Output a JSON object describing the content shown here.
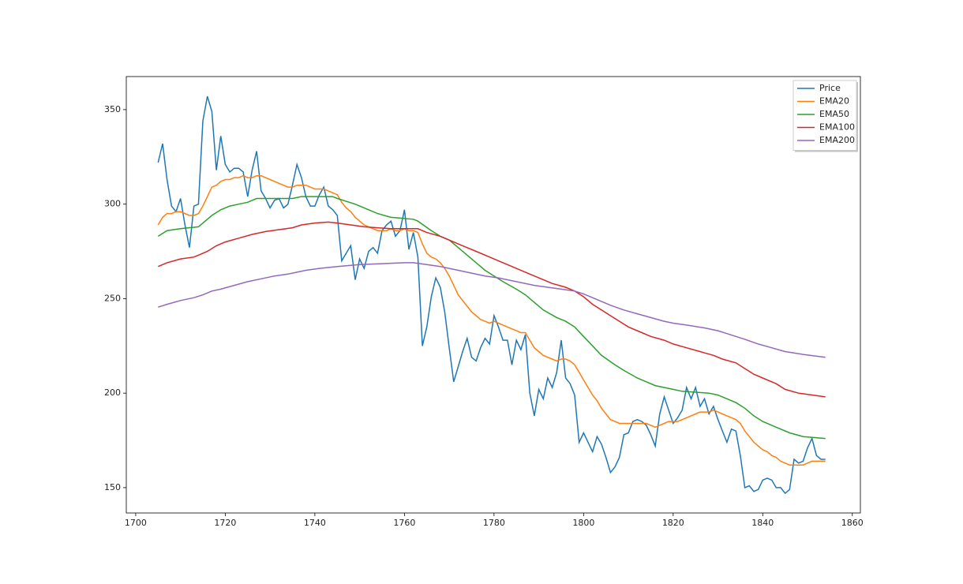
{
  "chart_data": {
    "type": "line",
    "legend": "upper right",
    "xlim": [
      1697.9,
      1861.8
    ],
    "ylim": [
      136.6,
      367.5
    ],
    "xticks": [
      1700,
      1720,
      1740,
      1760,
      1780,
      1800,
      1820,
      1840,
      1860
    ],
    "yticks": [
      150,
      200,
      250,
      300,
      350
    ],
    "x": [
      1705,
      1706,
      1707,
      1708,
      1709,
      1710,
      1711,
      1712,
      1713,
      1714,
      1715,
      1716,
      1717,
      1718,
      1719,
      1720,
      1721,
      1722,
      1723,
      1724,
      1725,
      1726,
      1727,
      1728,
      1729,
      1730,
      1731,
      1732,
      1733,
      1734,
      1735,
      1736,
      1737,
      1738,
      1739,
      1740,
      1741,
      1742,
      1743,
      1744,
      1745,
      1746,
      1747,
      1748,
      1749,
      1750,
      1751,
      1752,
      1753,
      1754,
      1755,
      1756,
      1757,
      1758,
      1759,
      1760,
      1761,
      1762,
      1763,
      1764,
      1765,
      1766,
      1767,
      1768,
      1769,
      1770,
      1771,
      1772,
      1773,
      1774,
      1775,
      1776,
      1777,
      1778,
      1779,
      1780,
      1781,
      1782,
      1783,
      1784,
      1785,
      1786,
      1787,
      1788,
      1789,
      1790,
      1791,
      1792,
      1793,
      1794,
      1795,
      1796,
      1797,
      1798,
      1799,
      1800,
      1801,
      1802,
      1803,
      1804,
      1805,
      1806,
      1807,
      1808,
      1809,
      1810,
      1811,
      1812,
      1813,
      1814,
      1815,
      1816,
      1817,
      1818,
      1819,
      1820,
      1821,
      1822,
      1823,
      1824,
      1825,
      1826,
      1827,
      1828,
      1829,
      1830,
      1831,
      1832,
      1833,
      1834,
      1835,
      1836,
      1837,
      1838,
      1839,
      1840,
      1841,
      1842,
      1843,
      1844,
      1845,
      1846,
      1847,
      1848,
      1849,
      1850,
      1851,
      1852,
      1853,
      1854
    ],
    "series": [
      {
        "name": "Price",
        "color": "#1f77b4",
        "values": [
          322,
          332,
          313,
          299,
          296,
          303,
          289,
          277,
          299,
          300,
          344,
          357,
          349,
          318,
          336,
          321,
          317,
          319,
          319,
          317,
          304,
          318,
          328,
          307,
          303,
          298,
          302,
          303,
          298,
          300,
          310,
          321,
          314,
          304,
          299,
          299,
          305,
          309,
          299,
          297,
          294,
          270,
          274,
          278,
          260,
          271,
          266,
          275,
          277,
          274,
          286,
          289,
          291,
          283,
          286,
          297,
          276,
          285,
          272,
          225,
          235,
          251,
          261,
          256,
          243,
          224,
          206,
          214,
          222,
          229,
          219,
          217,
          224,
          229,
          226,
          241,
          235,
          228,
          228,
          215,
          228,
          223,
          231,
          200,
          188,
          202,
          197,
          208,
          203,
          211,
          228,
          208,
          205,
          199,
          174,
          179,
          174,
          169,
          177,
          173,
          166,
          158,
          161,
          166,
          178,
          179,
          185,
          186,
          185,
          183,
          178,
          172,
          189,
          198,
          191,
          184,
          187,
          191,
          203,
          197,
          203,
          193,
          197,
          189,
          193,
          186,
          180,
          174,
          181,
          180,
          167,
          150,
          151,
          148,
          149,
          154,
          155,
          154,
          150,
          150,
          147,
          149,
          165,
          163,
          164,
          171,
          176,
          167,
          165,
          165
        ]
      },
      {
        "name": "EMA20",
        "color": "#ff7f0e",
        "values": [
          289,
          293,
          295,
          295,
          296,
          296,
          295,
          294,
          294,
          295,
          299,
          304,
          309,
          310,
          312,
          313,
          313,
          314,
          314,
          315,
          314,
          314,
          315,
          315,
          314,
          313,
          312,
          311,
          310,
          309,
          309,
          310,
          310,
          310,
          309,
          308,
          308,
          308,
          307,
          306,
          305,
          301,
          298,
          296,
          293,
          291,
          289,
          288,
          287,
          286,
          286,
          286,
          287,
          286,
          286,
          287,
          286,
          286,
          285,
          279,
          274,
          272,
          271,
          269,
          266,
          262,
          257,
          252,
          249,
          246,
          243,
          241,
          239,
          238,
          237,
          238,
          237,
          236,
          235,
          234,
          233,
          232,
          232,
          228,
          224,
          222,
          220,
          219,
          218,
          217,
          218,
          218,
          217,
          215,
          211,
          207,
          203,
          199,
          196,
          192,
          189,
          186,
          185,
          184,
          184,
          184,
          184,
          184,
          184,
          184,
          183,
          182,
          183,
          184,
          185,
          185,
          185,
          186,
          187,
          188,
          189,
          190,
          190,
          190,
          191,
          190,
          189,
          188,
          187,
          186,
          184,
          180,
          177,
          174,
          172,
          170,
          169,
          167,
          166,
          164,
          163,
          162,
          162,
          162,
          162,
          163,
          164,
          164,
          164,
          164
        ]
      },
      {
        "name": "EMA50",
        "color": "#2ca02c",
        "x": [
          1705,
          1707,
          1710,
          1714,
          1717,
          1719,
          1721,
          1723,
          1725,
          1727,
          1735,
          1737,
          1744,
          1745,
          1749,
          1752,
          1754,
          1757,
          1762,
          1763,
          1766,
          1768,
          1770,
          1772,
          1774,
          1776,
          1778,
          1780,
          1782,
          1785,
          1787,
          1789,
          1791,
          1794,
          1796,
          1798,
          1800,
          1802,
          1804,
          1807,
          1809,
          1812,
          1814,
          1816,
          1818,
          1820,
          1822,
          1828,
          1830,
          1832,
          1834,
          1836,
          1838,
          1840,
          1843,
          1846,
          1849,
          1854
        ],
        "values": [
          283,
          286,
          287,
          288,
          294,
          297,
          299,
          300,
          301,
          303,
          303,
          304,
          304,
          303,
          300,
          297,
          295,
          293,
          292,
          291,
          286,
          283,
          281,
          277,
          273,
          269,
          265,
          262,
          259,
          255,
          252,
          248,
          244,
          240,
          238,
          235,
          230,
          225,
          220,
          215,
          212,
          208,
          206,
          204,
          203,
          202,
          201,
          200,
          199,
          197,
          195,
          192,
          188,
          185,
          182,
          179,
          177,
          176
        ]
      },
      {
        "name": "EMA100",
        "color": "#d62728",
        "x": [
          1705,
          1707,
          1710,
          1713,
          1714,
          1716,
          1718,
          1720,
          1723,
          1726,
          1729,
          1732,
          1735,
          1737,
          1740,
          1743,
          1745,
          1748,
          1751,
          1754,
          1757,
          1763,
          1765,
          1768,
          1770,
          1773,
          1776,
          1779,
          1782,
          1784,
          1787,
          1790,
          1793,
          1796,
          1798,
          1800,
          1802,
          1804,
          1806,
          1808,
          1810,
          1813,
          1815,
          1818,
          1820,
          1823,
          1826,
          1829,
          1831,
          1834,
          1836,
          1838,
          1840,
          1843,
          1845,
          1848,
          1854
        ],
        "values": [
          267,
          269,
          271,
          272,
          273,
          275,
          278,
          280,
          282,
          284,
          285.5,
          286.5,
          287.5,
          289,
          290,
          290.5,
          290,
          289,
          288,
          287.5,
          287,
          287,
          285,
          283,
          281,
          278,
          275,
          272,
          269,
          267,
          264,
          261,
          258,
          256,
          254,
          251,
          247,
          244,
          241,
          238,
          235,
          232,
          230,
          228,
          226,
          224,
          222,
          220,
          218,
          216,
          213,
          210,
          208,
          205,
          202,
          200,
          198
        ]
      },
      {
        "name": "EMA200",
        "color": "#9467bd",
        "x": [
          1705,
          1707,
          1710,
          1713,
          1715,
          1717,
          1719,
          1722,
          1725,
          1728,
          1731,
          1734,
          1736,
          1738,
          1741,
          1745,
          1750,
          1755,
          1760,
          1762,
          1765,
          1768,
          1770,
          1772,
          1775,
          1778,
          1781,
          1785,
          1789,
          1792,
          1795,
          1798,
          1800,
          1803,
          1806,
          1809,
          1812,
          1815,
          1818,
          1820,
          1823,
          1827,
          1830,
          1832,
          1834,
          1836,
          1839,
          1842,
          1845,
          1849,
          1854
        ],
        "values": [
          245.5,
          247,
          249,
          250.5,
          252,
          254,
          255,
          257,
          259,
          260.5,
          262,
          263,
          264,
          265,
          266,
          267,
          268,
          268.5,
          269,
          269,
          268,
          267,
          266,
          265,
          263.5,
          262,
          261,
          259,
          257,
          256,
          255,
          254,
          252.5,
          249.5,
          246.5,
          244,
          242,
          240,
          238,
          237,
          236,
          234.5,
          233,
          231.5,
          230,
          228.5,
          226,
          224,
          222,
          220.5,
          219
        ]
      }
    ]
  }
}
